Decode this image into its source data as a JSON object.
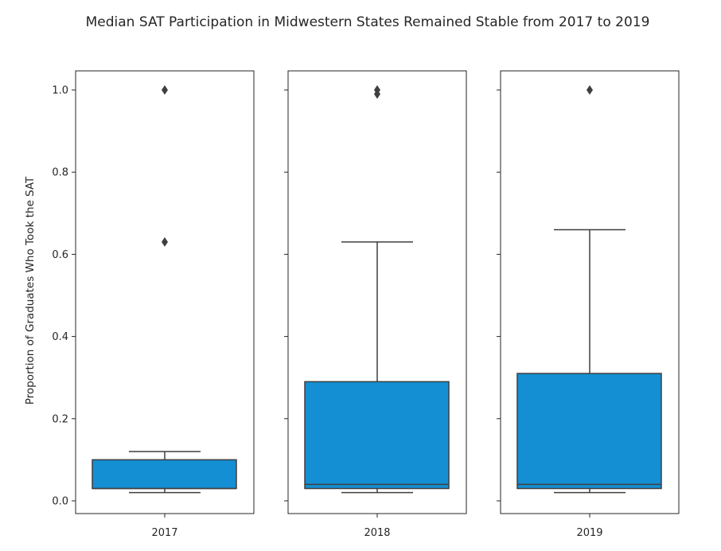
{
  "chart_data": {
    "type": "boxplot",
    "title": "Median SAT Participation in Midwestern States Remained Stable from 2017 to 2019",
    "ylabel": "Proportion of Graduates Who Took the SAT",
    "ylim": [
      0.0,
      1.0
    ],
    "yticks": [
      "0.0",
      "0.2",
      "0.4",
      "0.6",
      "0.8",
      "1.0"
    ],
    "ytick_values": [
      0.0,
      0.2,
      0.4,
      0.6,
      0.8,
      1.0
    ],
    "box_color": "#148fd3",
    "line_color": "#3f3f3f",
    "shared_y": true,
    "panels": [
      {
        "year": "2017",
        "whisker_low": 0.02,
        "q1": 0.03,
        "median": 0.03,
        "q3": 0.1,
        "whisker_high": 0.12,
        "outliers": [
          0.63,
          1.0
        ]
      },
      {
        "year": "2018",
        "whisker_low": 0.02,
        "q1": 0.03,
        "median": 0.04,
        "q3": 0.29,
        "whisker_high": 0.63,
        "outliers": [
          0.99,
          1.0
        ]
      },
      {
        "year": "2019",
        "whisker_low": 0.02,
        "q1": 0.03,
        "median": 0.04,
        "q3": 0.31,
        "whisker_high": 0.66,
        "outliers": [
          1.0
        ]
      }
    ]
  }
}
